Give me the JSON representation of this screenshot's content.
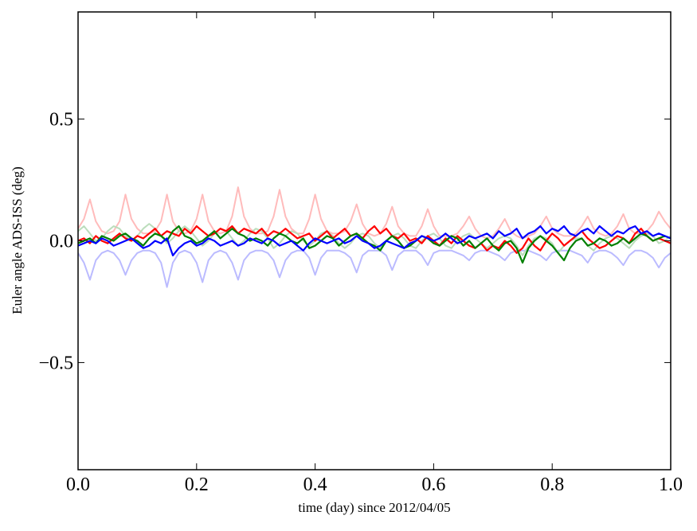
{
  "chart_data": {
    "type": "line",
    "title": "",
    "xlabel": "time (day) since 2012/04/05",
    "ylabel": "Euler angle ADS-ISS (deg)",
    "xlim": [
      0.0,
      1.0
    ],
    "ylim": [
      -0.94,
      0.94
    ],
    "grid": false,
    "x_start": 0.0,
    "x_end": 1.0,
    "xticks": [
      {
        "value": 0.0,
        "label": "0.0"
      },
      {
        "value": 0.2,
        "label": "0.2"
      },
      {
        "value": 0.4,
        "label": "0.4"
      },
      {
        "value": 0.6,
        "label": "0.6"
      },
      {
        "value": 0.8,
        "label": "0.8"
      },
      {
        "value": 1.0,
        "label": "1.0"
      }
    ],
    "yticks": [
      {
        "value": 0.5,
        "label": "0.5"
      },
      {
        "value": 0.0,
        "label": "0.0"
      },
      {
        "value": -0.5,
        "label": "−0.5"
      }
    ],
    "series": [
      {
        "name": "pale-red",
        "color": "#ffbbbb",
        "width": 2,
        "values": [
          0.05,
          0.09,
          0.17,
          0.08,
          0.04,
          0.03,
          0.04,
          0.08,
          0.19,
          0.09,
          0.05,
          0.03,
          0.03,
          0.04,
          0.08,
          0.19,
          0.08,
          0.04,
          0.03,
          0.04,
          0.09,
          0.19,
          0.08,
          0.04,
          0.03,
          0.04,
          0.1,
          0.22,
          0.1,
          0.05,
          0.03,
          0.03,
          0.04,
          0.1,
          0.21,
          0.1,
          0.05,
          0.03,
          0.03,
          0.09,
          0.19,
          0.09,
          0.04,
          0.03,
          0.03,
          0.04,
          0.08,
          0.15,
          0.07,
          0.03,
          0.02,
          0.03,
          0.07,
          0.14,
          0.06,
          0.03,
          0.02,
          0.02,
          0.06,
          0.13,
          0.06,
          0.02,
          0.02,
          0.02,
          0.03,
          0.06,
          0.1,
          0.05,
          0.02,
          0.01,
          0.02,
          0.05,
          0.09,
          0.04,
          0.02,
          0.01,
          0.02,
          0.03,
          0.06,
          0.1,
          0.05,
          0.03,
          0.02,
          0.02,
          0.03,
          0.06,
          0.1,
          0.05,
          0.03,
          0.02,
          0.03,
          0.06,
          0.11,
          0.05,
          0.03,
          0.03,
          0.04,
          0.07,
          0.12,
          0.08,
          0.05
        ]
      },
      {
        "name": "pale-blue",
        "color": "#bbbbff",
        "width": 2,
        "values": [
          -0.05,
          -0.09,
          -0.16,
          -0.08,
          -0.05,
          -0.04,
          -0.05,
          -0.08,
          -0.14,
          -0.08,
          -0.05,
          -0.04,
          -0.04,
          -0.05,
          -0.09,
          -0.19,
          -0.09,
          -0.05,
          -0.04,
          -0.05,
          -0.09,
          -0.17,
          -0.08,
          -0.05,
          -0.04,
          -0.05,
          -0.09,
          -0.16,
          -0.08,
          -0.05,
          -0.04,
          -0.04,
          -0.05,
          -0.08,
          -0.15,
          -0.08,
          -0.05,
          -0.04,
          -0.04,
          -0.07,
          -0.14,
          -0.07,
          -0.04,
          -0.04,
          -0.04,
          -0.05,
          -0.07,
          -0.13,
          -0.06,
          -0.04,
          -0.04,
          -0.04,
          -0.06,
          -0.12,
          -0.06,
          -0.04,
          -0.04,
          -0.04,
          -0.06,
          -0.1,
          -0.05,
          -0.04,
          -0.04,
          -0.04,
          -0.05,
          -0.06,
          -0.08,
          -0.05,
          -0.04,
          -0.04,
          -0.05,
          -0.06,
          -0.08,
          -0.05,
          -0.04,
          -0.04,
          -0.04,
          -0.05,
          -0.06,
          -0.08,
          -0.05,
          -0.04,
          -0.04,
          -0.04,
          -0.05,
          -0.06,
          -0.09,
          -0.05,
          -0.04,
          -0.04,
          -0.05,
          -0.07,
          -0.1,
          -0.06,
          -0.04,
          -0.04,
          -0.05,
          -0.07,
          -0.11,
          -0.07,
          -0.05
        ]
      },
      {
        "name": "pale-green",
        "color": "#bbddbb",
        "width": 2,
        "values": [
          0.04,
          0.06,
          0.03,
          0.0,
          0.01,
          0.04,
          0.06,
          0.05,
          0.02,
          0.0,
          0.02,
          0.05,
          0.07,
          0.05,
          0.02,
          -0.01,
          0.01,
          0.04,
          0.06,
          0.04,
          0.01,
          -0.02,
          0.0,
          0.03,
          0.05,
          0.04,
          0.01,
          -0.02,
          0.0,
          0.03,
          0.05,
          0.04,
          0.01,
          -0.03,
          -0.01,
          0.02,
          0.04,
          0.03,
          0.0,
          -0.02,
          0.0,
          0.03,
          0.04,
          0.02,
          -0.01,
          -0.03,
          -0.01,
          0.02,
          0.03,
          0.02,
          -0.01,
          -0.03,
          0.0,
          0.02,
          0.03,
          0.01,
          -0.02,
          -0.03,
          0.0,
          0.02,
          0.03,
          0.01,
          -0.02,
          -0.03,
          0.0,
          0.02,
          0.03,
          0.01,
          -0.01,
          -0.03,
          -0.01,
          0.01,
          0.02,
          0.01,
          -0.02,
          -0.06,
          -0.02,
          0.01,
          0.02,
          0.01,
          -0.01,
          -0.05,
          -0.02,
          0.0,
          0.01,
          0.01,
          -0.02,
          -0.04,
          -0.01,
          0.01,
          0.02,
          0.01,
          -0.01,
          -0.03,
          0.0,
          0.02,
          0.03,
          0.02,
          -0.01,
          0.0,
          0.02
        ]
      },
      {
        "name": "red",
        "color": "#ff0000",
        "width": 2.2,
        "values": [
          0.0,
          0.01,
          -0.01,
          0.02,
          0.0,
          -0.01,
          0.01,
          0.03,
          0.01,
          0.0,
          0.02,
          0.01,
          0.03,
          0.05,
          0.02,
          0.04,
          0.03,
          0.02,
          0.05,
          0.03,
          0.06,
          0.04,
          0.02,
          0.03,
          0.05,
          0.04,
          0.06,
          0.03,
          0.05,
          0.04,
          0.03,
          0.05,
          0.02,
          0.04,
          0.03,
          0.05,
          0.03,
          0.01,
          0.02,
          0.03,
          0.0,
          0.02,
          0.04,
          0.01,
          0.03,
          0.05,
          0.02,
          0.03,
          0.01,
          0.04,
          0.06,
          0.03,
          0.05,
          0.02,
          0.01,
          0.03,
          0.0,
          0.01,
          -0.01,
          0.02,
          0.0,
          -0.02,
          0.01,
          -0.01,
          0.02,
          0.0,
          -0.02,
          -0.03,
          -0.01,
          -0.04,
          -0.02,
          -0.03,
          0.0,
          -0.02,
          -0.05,
          -0.03,
          0.01,
          -0.02,
          -0.04,
          0.0,
          0.03,
          0.01,
          -0.02,
          0.0,
          0.02,
          0.04,
          0.01,
          -0.01,
          -0.03,
          -0.02,
          0.0,
          0.02,
          0.01,
          -0.01,
          0.03,
          0.05,
          0.02,
          0.0,
          0.01,
          0.0,
          -0.01
        ]
      },
      {
        "name": "green",
        "color": "#008000",
        "width": 2.2,
        "values": [
          -0.01,
          0.0,
          0.01,
          -0.01,
          0.02,
          0.01,
          0.0,
          0.02,
          0.03,
          0.01,
          0.0,
          -0.02,
          0.01,
          0.03,
          0.02,
          0.0,
          0.04,
          0.06,
          0.02,
          0.01,
          -0.01,
          0.0,
          0.02,
          0.04,
          0.01,
          0.03,
          0.05,
          0.03,
          0.02,
          0.0,
          0.01,
          0.0,
          -0.02,
          0.01,
          0.03,
          0.02,
          0.0,
          -0.01,
          0.01,
          -0.03,
          -0.02,
          0.0,
          0.02,
          0.01,
          -0.02,
          0.0,
          0.02,
          0.03,
          0.01,
          -0.01,
          -0.02,
          -0.04,
          0.0,
          0.02,
          0.0,
          -0.03,
          -0.02,
          0.0,
          0.02,
          0.01,
          -0.01,
          -0.02,
          0.0,
          0.02,
          0.01,
          -0.02,
          0.0,
          -0.03,
          -0.01,
          0.01,
          -0.02,
          -0.04,
          -0.01,
          0.0,
          -0.03,
          -0.09,
          -0.03,
          0.0,
          0.02,
          0.0,
          -0.02,
          -0.05,
          -0.08,
          -0.03,
          0.0,
          0.01,
          -0.02,
          -0.01,
          0.01,
          0.0,
          -0.02,
          -0.01,
          0.01,
          -0.01,
          0.01,
          0.03,
          0.02,
          0.0,
          0.01,
          0.02,
          0.01
        ]
      },
      {
        "name": "blue",
        "color": "#0000ff",
        "width": 2.2,
        "values": [
          -0.02,
          -0.01,
          0.0,
          -0.01,
          0.01,
          0.0,
          -0.02,
          -0.01,
          0.0,
          0.01,
          -0.01,
          -0.03,
          -0.02,
          0.0,
          -0.01,
          0.01,
          -0.06,
          -0.03,
          -0.01,
          0.0,
          -0.02,
          -0.01,
          0.01,
          0.0,
          -0.02,
          -0.01,
          0.0,
          -0.02,
          -0.01,
          0.01,
          0.0,
          -0.01,
          0.01,
          0.0,
          -0.02,
          -0.01,
          0.0,
          -0.02,
          -0.04,
          -0.01,
          0.01,
          0.0,
          -0.01,
          0.0,
          0.01,
          -0.01,
          0.0,
          0.02,
          0.0,
          -0.01,
          -0.03,
          -0.02,
          0.0,
          -0.01,
          -0.02,
          -0.03,
          -0.01,
          0.0,
          0.02,
          0.01,
          0.0,
          0.01,
          0.03,
          0.01,
          -0.01,
          0.0,
          0.02,
          0.01,
          0.02,
          0.03,
          0.01,
          0.04,
          0.02,
          0.03,
          0.05,
          0.01,
          0.03,
          0.04,
          0.06,
          0.03,
          0.05,
          0.04,
          0.06,
          0.03,
          0.02,
          0.04,
          0.05,
          0.03,
          0.06,
          0.04,
          0.02,
          0.04,
          0.03,
          0.05,
          0.06,
          0.03,
          0.04,
          0.02,
          0.03,
          0.02,
          0.01
        ]
      }
    ]
  }
}
